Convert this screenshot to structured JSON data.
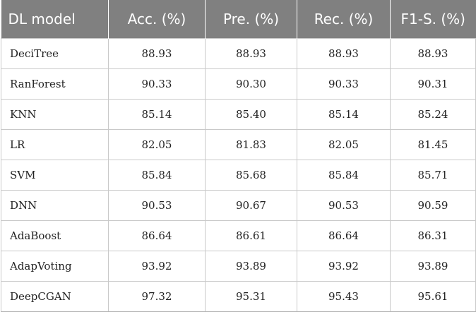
{
  "table": {
    "headers": [
      "DL model",
      "Acc. (%)",
      "Pre. (%)",
      "Rec. (%)",
      "F1-S. (%)"
    ],
    "rows": [
      [
        "DeciTree",
        "88.93",
        "88.93",
        "88.93",
        "88.93"
      ],
      [
        "RanForest",
        "90.33",
        "90.30",
        "90.33",
        "90.31"
      ],
      [
        "KNN",
        "85.14",
        "85.40",
        "85.14",
        "85.24"
      ],
      [
        "LR",
        "82.05",
        "81.83",
        "82.05",
        "81.45"
      ],
      [
        "SVM",
        "85.84",
        "85.68",
        "85.84",
        "85.71"
      ],
      [
        "DNN",
        "90.53",
        "90.67",
        "90.53",
        "90.59"
      ],
      [
        "AdaBoost",
        "86.64",
        "86.61",
        "86.64",
        "86.31"
      ],
      [
        "AdapVoting",
        "93.92",
        "93.89",
        "93.92",
        "93.89"
      ],
      [
        "DeepCGAN",
        "97.32",
        "95.31",
        "95.43",
        "95.61"
      ]
    ]
  },
  "colors": {
    "header_bg": "#808080",
    "header_text": "#ffffff",
    "border": "#c9c9c9"
  }
}
